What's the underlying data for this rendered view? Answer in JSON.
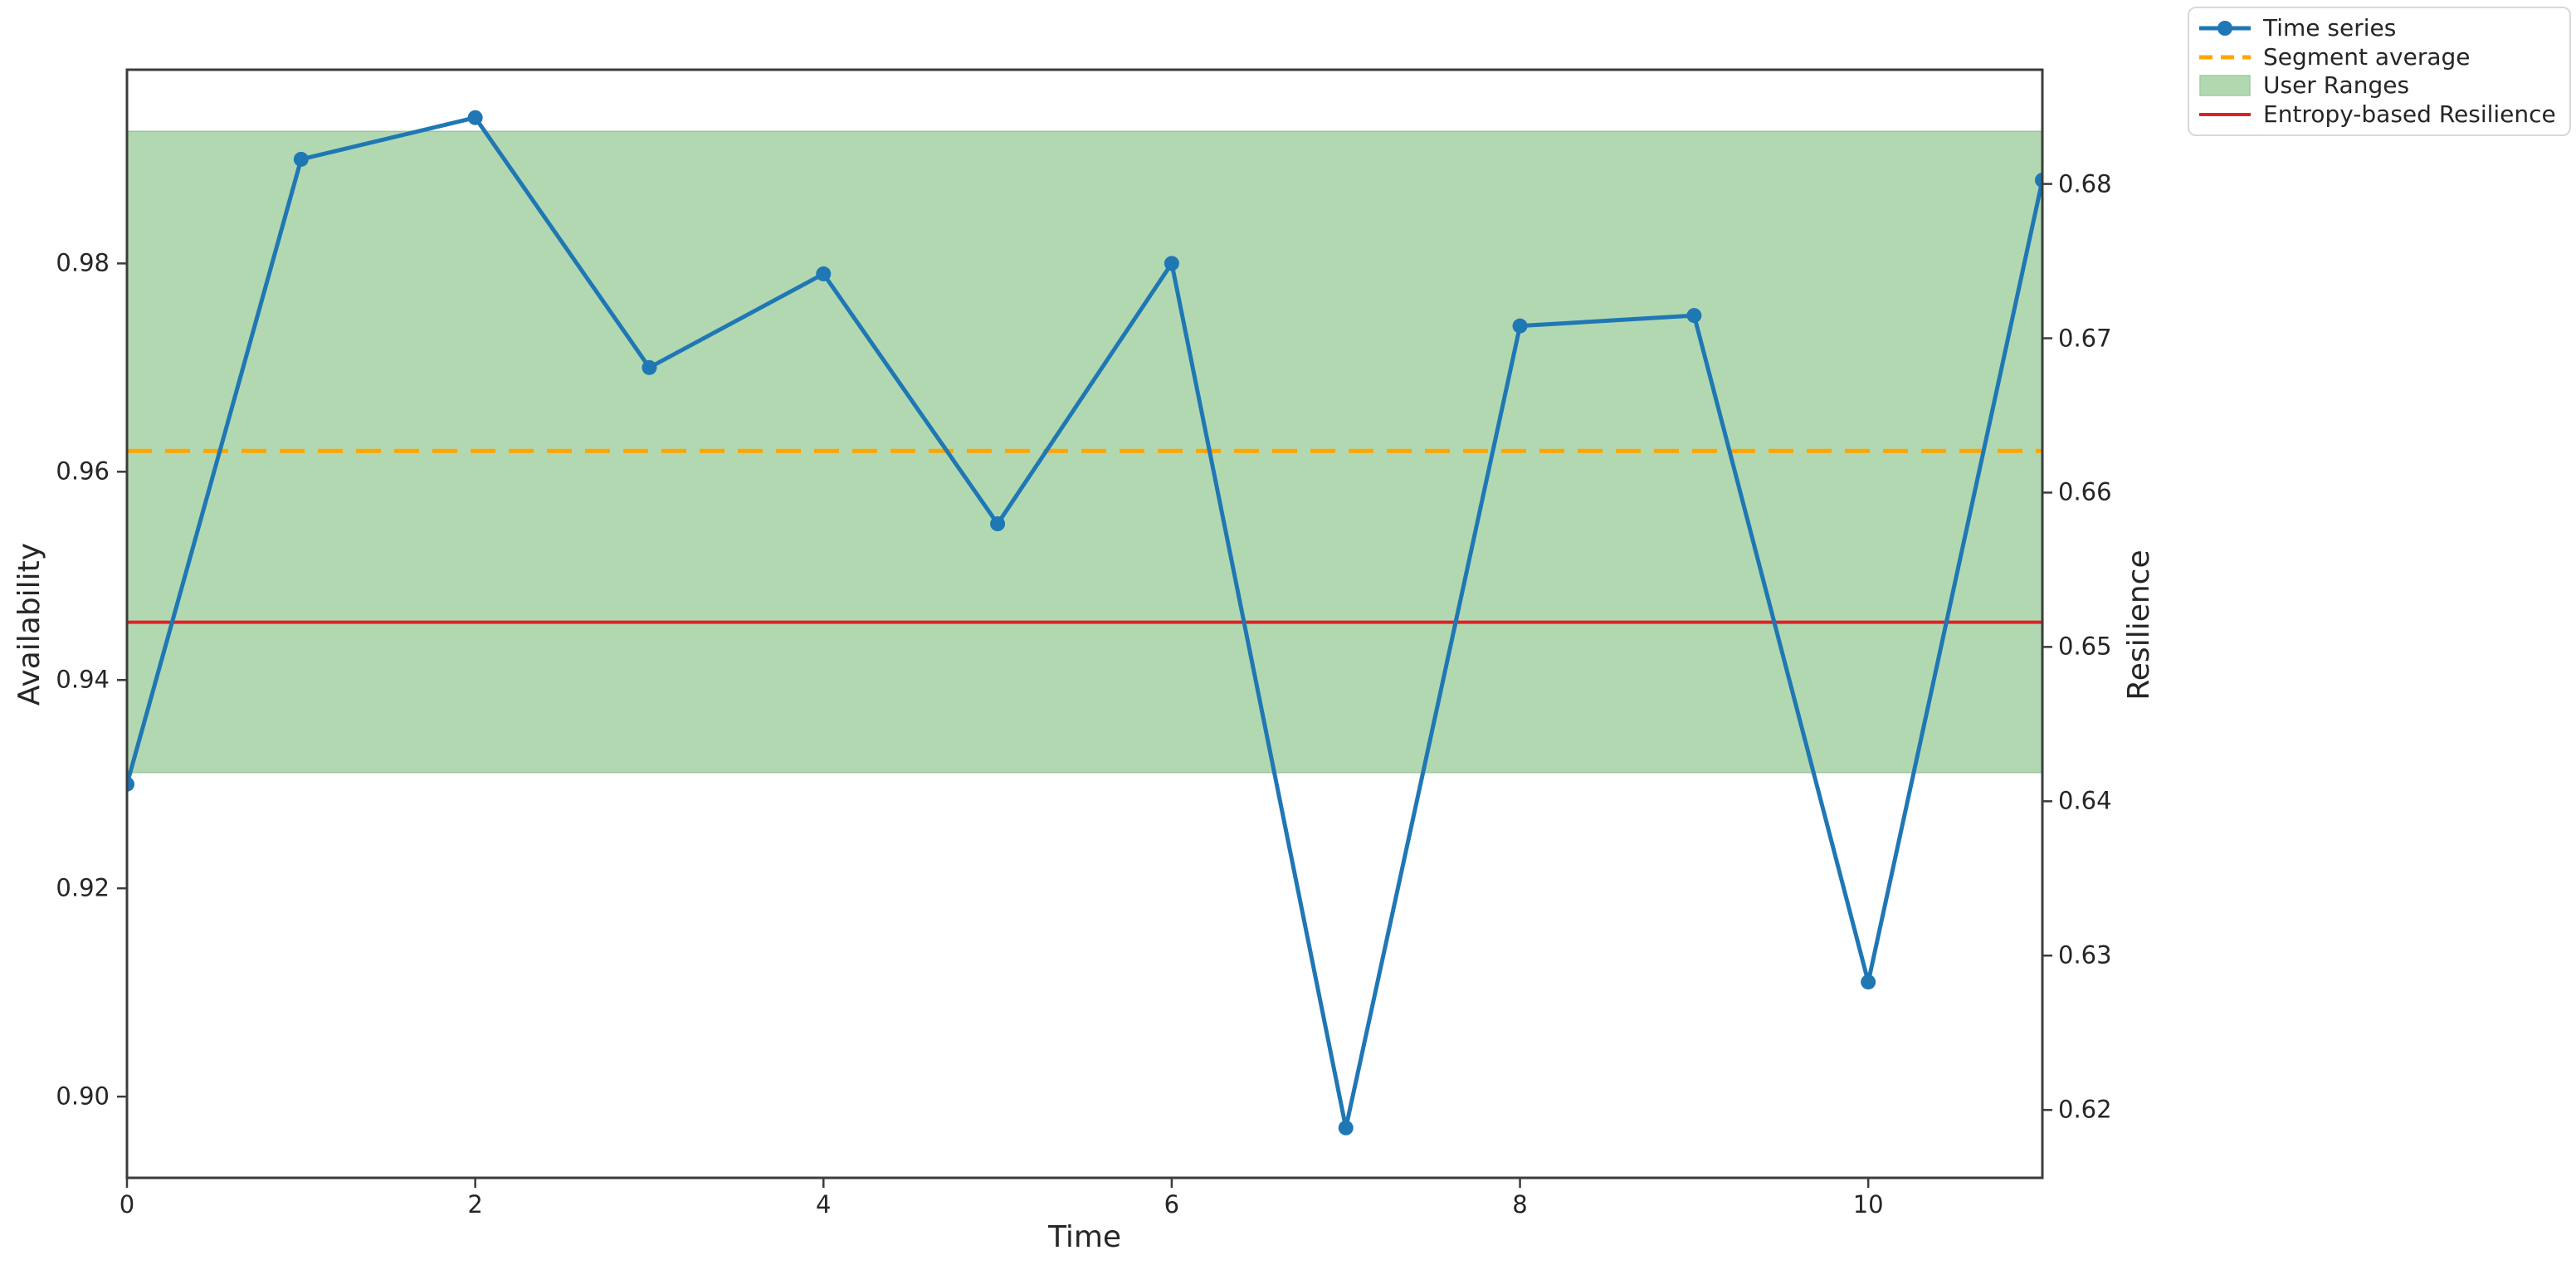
{
  "figure": {
    "background": "#ffffff"
  },
  "chart_data": {
    "type": "line",
    "title": "",
    "xlabel": "Time",
    "ylabel_left": "Availability",
    "ylabel_right": "Resilience",
    "x": [
      0,
      1,
      2,
      3,
      4,
      5,
      6,
      7,
      8,
      9,
      10,
      11
    ],
    "series": [
      {
        "name": "Time series",
        "axis": "left",
        "color": "#1f77b4",
        "marker": "circle",
        "values": [
          0.93,
          0.99,
          0.994,
          0.97,
          0.979,
          0.955,
          0.98,
          0.897,
          0.974,
          0.975,
          0.911,
          0.988
        ]
      }
    ],
    "reference_lines": [
      {
        "name": "Segment average",
        "axis": "left",
        "value": 0.962,
        "color": "#ffa500",
        "style": "dashed",
        "width": 5
      },
      {
        "name": "Entropy-based Resilience",
        "axis": "right",
        "value": 0.6516,
        "color": "#e22126",
        "style": "solid",
        "width": 4
      }
    ],
    "bands": [
      {
        "name": "User Ranges",
        "axis": "left",
        "low": 0.9311,
        "high": 0.9927,
        "fill": "#b2d8b2",
        "edge": "rgba(70,140,70,0.25)"
      }
    ],
    "x_ticks": [
      {
        "value": 0,
        "label": "0"
      },
      {
        "value": 2,
        "label": "2"
      },
      {
        "value": 4,
        "label": "4"
      },
      {
        "value": 6,
        "label": "6"
      },
      {
        "value": 8,
        "label": "8"
      },
      {
        "value": 10,
        "label": "10"
      }
    ],
    "y_ticks_left": [
      {
        "value": 0.9,
        "label": "0.90"
      },
      {
        "value": 0.92,
        "label": "0.92"
      },
      {
        "value": 0.94,
        "label": "0.94"
      },
      {
        "value": 0.96,
        "label": "0.96"
      },
      {
        "value": 0.98,
        "label": "0.98"
      }
    ],
    "y_ticks_right": [
      {
        "value": 0.62,
        "label": "0.62"
      },
      {
        "value": 0.63,
        "label": "0.63"
      },
      {
        "value": 0.64,
        "label": "0.64"
      },
      {
        "value": 0.65,
        "label": "0.65"
      },
      {
        "value": 0.66,
        "label": "0.66"
      },
      {
        "value": 0.67,
        "label": "0.67"
      },
      {
        "value": 0.68,
        "label": "0.68"
      }
    ],
    "xlim": [
      0,
      11
    ],
    "ylim_left": [
      0.8922,
      0.9986
    ],
    "ylim_right": [
      0.6156,
      0.6874
    ],
    "grid": false,
    "legend": {
      "position": "outside-top-right",
      "items": [
        {
          "label": "Time series",
          "swatch": "line-marker",
          "color": "#1f77b4"
        },
        {
          "label": "Segment average",
          "swatch": "dashed-line",
          "color": "#ffa500"
        },
        {
          "label": "User Ranges",
          "swatch": "patch",
          "color": "#b2d8b2",
          "edge": "#9dcd9d"
        },
        {
          "label": "Entropy-based Resilience",
          "swatch": "line",
          "color": "#e22126"
        }
      ]
    }
  }
}
